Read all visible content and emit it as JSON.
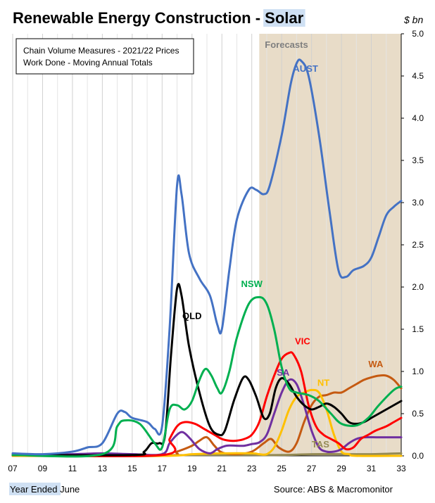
{
  "chart_data": {
    "type": "line",
    "title": "Renewable Energy Construction - ",
    "title_highlight": "Solar",
    "unit": "$ bn",
    "subtitle_lines": [
      "Chain Volume Measures - 2021/22 Prices",
      "Work Done - Moving Annual Totals"
    ],
    "forecast_label": "Forecasts",
    "forecast_start": 23.5,
    "xlabel_prefix": "Year Ended",
    "xlabel_suffix": " June",
    "source": "Source: ABS & Macromonitor",
    "xlim": [
      7,
      33
    ],
    "ylim": [
      0,
      5
    ],
    "x_ticks": [
      "07",
      "09",
      "11",
      "13",
      "15",
      "17",
      "19",
      "21",
      "23",
      "25",
      "27",
      "29",
      "31",
      "33"
    ],
    "y_ticks": [
      "0.0",
      "0.5",
      "1.0",
      "1.5",
      "2.0",
      "2.5",
      "3.0",
      "3.5",
      "4.0",
      "4.5",
      "5.0"
    ],
    "gridlines": "vertical",
    "series": [
      {
        "name": "AUST",
        "color": "#4472C4",
        "label_at": [
          26.6,
          4.55
        ],
        "points": [
          [
            7,
            0.03
          ],
          [
            9,
            0.02
          ],
          [
            11,
            0.05
          ],
          [
            12,
            0.1
          ],
          [
            13,
            0.15
          ],
          [
            14,
            0.5
          ],
          [
            14.5,
            0.52
          ],
          [
            15,
            0.45
          ],
          [
            16,
            0.4
          ],
          [
            16.5,
            0.32
          ],
          [
            17,
            0.35
          ],
          [
            17.5,
            1.5
          ],
          [
            18,
            3.2
          ],
          [
            18.3,
            3.1
          ],
          [
            18.8,
            2.4
          ],
          [
            19.5,
            2.1
          ],
          [
            20.2,
            1.9
          ],
          [
            20.7,
            1.55
          ],
          [
            21,
            1.5
          ],
          [
            21.5,
            2.2
          ],
          [
            22,
            2.8
          ],
          [
            22.8,
            3.15
          ],
          [
            23.3,
            3.15
          ],
          [
            23.8,
            3.1
          ],
          [
            24.2,
            3.2
          ],
          [
            25,
            3.8
          ],
          [
            25.6,
            4.4
          ],
          [
            26,
            4.65
          ],
          [
            26.3,
            4.68
          ],
          [
            26.8,
            4.5
          ],
          [
            27.5,
            3.8
          ],
          [
            28.2,
            2.9
          ],
          [
            28.8,
            2.2
          ],
          [
            29.3,
            2.12
          ],
          [
            29.8,
            2.2
          ],
          [
            30.5,
            2.25
          ],
          [
            31,
            2.35
          ],
          [
            31.5,
            2.6
          ],
          [
            32,
            2.85
          ],
          [
            32.5,
            2.95
          ],
          [
            33,
            3.02
          ]
        ]
      },
      {
        "name": "NSW",
        "color": "#00B050",
        "label_at": [
          23.0,
          2.0
        ],
        "points": [
          [
            7,
            0.01
          ],
          [
            13,
            0.02
          ],
          [
            14,
            0.35
          ],
          [
            14.5,
            0.42
          ],
          [
            15.5,
            0.38
          ],
          [
            16.5,
            0.15
          ],
          [
            17,
            0.1
          ],
          [
            17.5,
            0.55
          ],
          [
            18,
            0.6
          ],
          [
            18.5,
            0.55
          ],
          [
            19,
            0.65
          ],
          [
            19.5,
            0.9
          ],
          [
            19.9,
            1.03
          ],
          [
            20.3,
            0.95
          ],
          [
            20.7,
            0.8
          ],
          [
            21,
            0.75
          ],
          [
            21.5,
            1.0
          ],
          [
            22,
            1.4
          ],
          [
            22.8,
            1.8
          ],
          [
            23.5,
            1.88
          ],
          [
            24,
            1.8
          ],
          [
            24.5,
            1.5
          ],
          [
            25,
            1.05
          ],
          [
            25.5,
            0.8
          ],
          [
            26,
            0.75
          ],
          [
            26.8,
            0.72
          ],
          [
            27.5,
            0.65
          ],
          [
            28.3,
            0.5
          ],
          [
            29,
            0.38
          ],
          [
            30,
            0.36
          ],
          [
            30.8,
            0.45
          ],
          [
            31.5,
            0.6
          ],
          [
            32.5,
            0.78
          ],
          [
            33,
            0.82
          ]
        ]
      },
      {
        "name": "QLD",
        "color": "#000000",
        "label_at": [
          19.0,
          1.62
        ],
        "points": [
          [
            7,
            0.01
          ],
          [
            15,
            0.01
          ],
          [
            15.8,
            0.05
          ],
          [
            16.3,
            0.15
          ],
          [
            16.8,
            0.15
          ],
          [
            17.2,
            0.25
          ],
          [
            17.6,
            1.2
          ],
          [
            18,
            1.98
          ],
          [
            18.3,
            1.9
          ],
          [
            18.8,
            1.3
          ],
          [
            19.5,
            0.75
          ],
          [
            20.2,
            0.35
          ],
          [
            20.8,
            0.25
          ],
          [
            21.2,
            0.3
          ],
          [
            21.8,
            0.65
          ],
          [
            22.4,
            0.92
          ],
          [
            22.8,
            0.9
          ],
          [
            23.3,
            0.7
          ],
          [
            23.8,
            0.45
          ],
          [
            24.2,
            0.5
          ],
          [
            24.6,
            0.8
          ],
          [
            25,
            0.92
          ],
          [
            25.5,
            0.85
          ],
          [
            26,
            0.7
          ],
          [
            26.5,
            0.6
          ],
          [
            27,
            0.55
          ],
          [
            27.5,
            0.58
          ],
          [
            28,
            0.62
          ],
          [
            28.5,
            0.58
          ],
          [
            29,
            0.5
          ],
          [
            29.5,
            0.4
          ],
          [
            30,
            0.38
          ],
          [
            30.5,
            0.4
          ],
          [
            31,
            0.45
          ],
          [
            31.5,
            0.5
          ],
          [
            32,
            0.55
          ],
          [
            32.5,
            0.6
          ],
          [
            33,
            0.65
          ]
        ]
      },
      {
        "name": "VIC",
        "color": "#FF0000",
        "label_at": [
          26.4,
          1.32
        ],
        "points": [
          [
            7,
            0.01
          ],
          [
            17,
            0.01
          ],
          [
            17.5,
            0.2
          ],
          [
            18,
            0.35
          ],
          [
            18.5,
            0.4
          ],
          [
            19.2,
            0.38
          ],
          [
            19.8,
            0.32
          ],
          [
            20.5,
            0.25
          ],
          [
            21,
            0.2
          ],
          [
            21.5,
            0.18
          ],
          [
            22,
            0.18
          ],
          [
            22.5,
            0.2
          ],
          [
            23,
            0.25
          ],
          [
            23.5,
            0.4
          ],
          [
            24,
            0.7
          ],
          [
            24.5,
            0.95
          ],
          [
            25,
            1.15
          ],
          [
            25.5,
            1.22
          ],
          [
            25.8,
            1.2
          ],
          [
            26.3,
            1.0
          ],
          [
            26.8,
            0.6
          ],
          [
            27.3,
            0.35
          ],
          [
            27.8,
            0.25
          ],
          [
            28.3,
            0.2
          ],
          [
            28.8,
            0.15
          ],
          [
            29.3,
            0.08
          ],
          [
            29.8,
            0.1
          ],
          [
            30.3,
            0.2
          ],
          [
            30.8,
            0.25
          ],
          [
            31.3,
            0.3
          ],
          [
            32,
            0.35
          ],
          [
            32.5,
            0.4
          ],
          [
            33,
            0.45
          ]
        ]
      },
      {
        "name": "SA",
        "color": "#7030A0",
        "label_at": [
          25.1,
          0.95
        ],
        "points": [
          [
            7,
            0.01
          ],
          [
            11,
            0.02
          ],
          [
            13,
            0.03
          ],
          [
            15,
            0.02
          ],
          [
            17,
            0.02
          ],
          [
            17.5,
            0.15
          ],
          [
            18,
            0.25
          ],
          [
            18.4,
            0.28
          ],
          [
            18.9,
            0.2
          ],
          [
            19.5,
            0.08
          ],
          [
            20.2,
            0.03
          ],
          [
            20.7,
            0.08
          ],
          [
            21.3,
            0.12
          ],
          [
            22,
            0.12
          ],
          [
            22.5,
            0.12
          ],
          [
            23,
            0.14
          ],
          [
            23.5,
            0.16
          ],
          [
            24,
            0.25
          ],
          [
            24.5,
            0.5
          ],
          [
            25,
            0.75
          ],
          [
            25.5,
            0.9
          ],
          [
            26,
            0.85
          ],
          [
            26.5,
            0.6
          ],
          [
            27,
            0.3
          ],
          [
            27.5,
            0.1
          ],
          [
            28,
            0.05
          ],
          [
            28.5,
            0.05
          ],
          [
            29,
            0.08
          ],
          [
            29.5,
            0.15
          ],
          [
            30,
            0.2
          ],
          [
            30.5,
            0.22
          ],
          [
            31.5,
            0.22
          ],
          [
            33,
            0.22
          ]
        ]
      },
      {
        "name": "NT",
        "color": "#FFC000",
        "label_at": [
          27.8,
          0.83
        ],
        "points": [
          [
            7,
            0.0
          ],
          [
            17,
            0.0
          ],
          [
            19,
            0.02
          ],
          [
            21,
            0.03
          ],
          [
            23,
            0.03
          ],
          [
            23.5,
            0.02
          ],
          [
            24,
            0.02
          ],
          [
            24.5,
            0.1
          ],
          [
            25,
            0.3
          ],
          [
            25.5,
            0.55
          ],
          [
            26,
            0.7
          ],
          [
            26.5,
            0.75
          ],
          [
            27,
            0.78
          ],
          [
            27.5,
            0.75
          ],
          [
            28,
            0.55
          ],
          [
            28.5,
            0.25
          ],
          [
            29,
            0.05
          ],
          [
            29.5,
            0.02
          ],
          [
            30,
            0.0
          ],
          [
            33,
            0.0
          ]
        ]
      },
      {
        "name": "WA",
        "color": "#C55A11",
        "label_at": [
          31.3,
          1.05
        ],
        "points": [
          [
            7,
            0.0
          ],
          [
            17,
            0.0
          ],
          [
            18,
            0.05
          ],
          [
            19,
            0.12
          ],
          [
            19.5,
            0.18
          ],
          [
            20,
            0.22
          ],
          [
            20.5,
            0.12
          ],
          [
            21,
            0.04
          ],
          [
            22,
            0.02
          ],
          [
            23,
            0.05
          ],
          [
            23.8,
            0.15
          ],
          [
            24.3,
            0.2
          ],
          [
            24.8,
            0.1
          ],
          [
            25.5,
            0.05
          ],
          [
            26,
            0.15
          ],
          [
            26.5,
            0.4
          ],
          [
            27,
            0.6
          ],
          [
            27.5,
            0.7
          ],
          [
            28,
            0.72
          ],
          [
            28.5,
            0.75
          ],
          [
            29,
            0.75
          ],
          [
            29.5,
            0.8
          ],
          [
            30,
            0.85
          ],
          [
            30.5,
            0.9
          ],
          [
            31,
            0.93
          ],
          [
            31.5,
            0.95
          ],
          [
            32,
            0.95
          ],
          [
            32.5,
            0.9
          ],
          [
            33,
            0.8
          ]
        ]
      },
      {
        "name": "TAS",
        "color": "#948A54",
        "label_at": [
          27.6,
          0.1
        ],
        "points": [
          [
            7,
            0.0
          ],
          [
            20,
            0.01
          ],
          [
            23,
            0.01
          ],
          [
            25,
            0.01
          ],
          [
            27,
            0.02
          ],
          [
            29,
            0.02
          ],
          [
            31,
            0.02
          ],
          [
            33,
            0.03
          ]
        ]
      }
    ]
  }
}
